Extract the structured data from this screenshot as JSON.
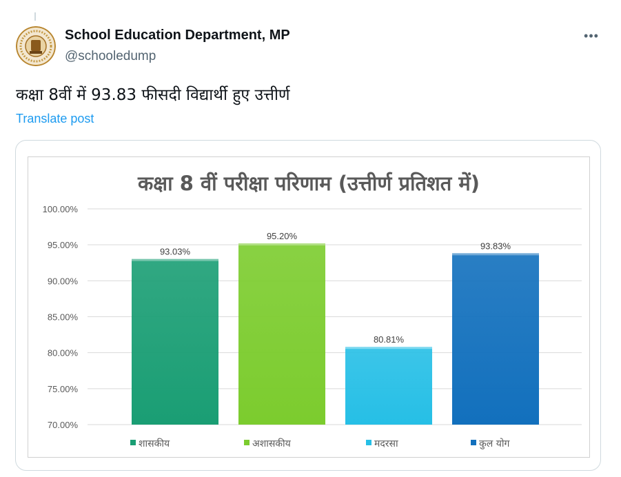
{
  "post": {
    "author_name": "School Education Department, MP",
    "author_handle": "@schooledump",
    "text": "कक्षा 8वीं में 93.83 फीसदी विद्यार्थी हुए उत्तीर्ण",
    "translate_label": "Translate post",
    "more_label": "•••"
  },
  "chart_data": {
    "type": "bar",
    "title": "कक्षा 8 वीं परीक्षा परिणाम (उत्तीर्ण प्रतिशत में)",
    "categories": [
      "शासकीय",
      "अशासकीय",
      "मदरसा",
      "कुल योग"
    ],
    "values": [
      93.03,
      95.2,
      80.81,
      93.83
    ],
    "value_labels": [
      "93.03%",
      "95.20%",
      "80.81%",
      "93.83%"
    ],
    "colors": [
      "#1a9e74",
      "#7ccc2e",
      "#26bfe6",
      "#1270bd"
    ],
    "yticks": [
      "70.00%",
      "75.00%",
      "80.00%",
      "85.00%",
      "90.00%",
      "95.00%",
      "100.00%"
    ],
    "ylim": [
      70,
      100
    ],
    "grid": true,
    "legend": "bottom"
  }
}
